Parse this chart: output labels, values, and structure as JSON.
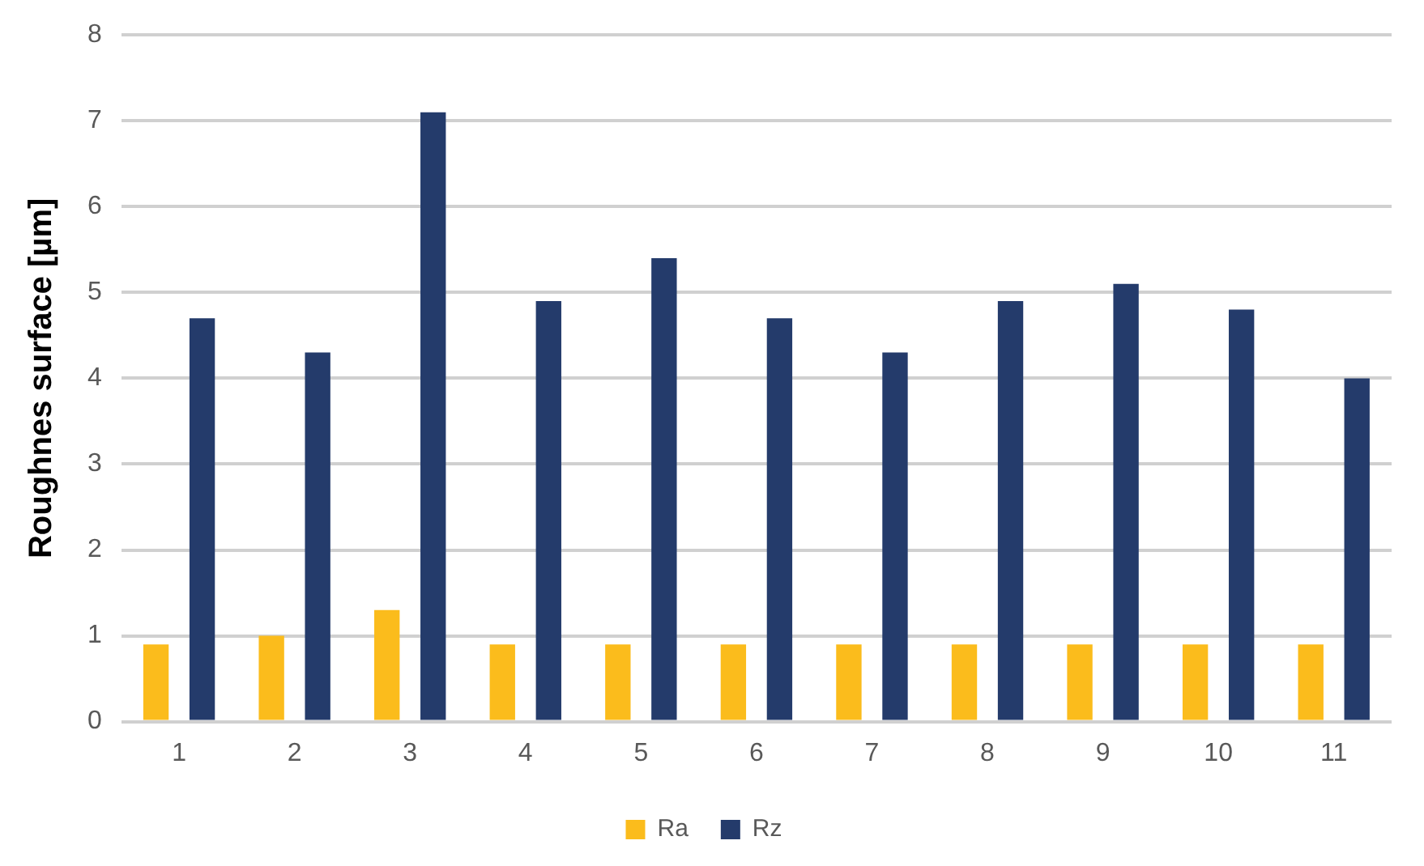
{
  "chart_data": {
    "type": "bar",
    "ylabel": "Roughnes surface [µm]",
    "categories": [
      "1",
      "2",
      "3",
      "4",
      "5",
      "6",
      "7",
      "8",
      "9",
      "10",
      "11"
    ],
    "series": [
      {
        "name": "Ra",
        "color": "#fbbc1c",
        "values": [
          0.9,
          1.0,
          1.3,
          0.9,
          0.9,
          0.9,
          0.9,
          0.9,
          0.9,
          0.9,
          0.9
        ]
      },
      {
        "name": "Rz",
        "color": "#243b6b",
        "values": [
          4.7,
          4.3,
          7.1,
          4.9,
          5.4,
          4.7,
          4.3,
          4.9,
          5.1,
          4.8,
          4.0
        ]
      }
    ],
    "ylim": [
      0,
      8
    ],
    "yticks": [
      0,
      1,
      2,
      3,
      4,
      5,
      6,
      7,
      8
    ],
    "grid": "y",
    "legend": "bottom"
  }
}
